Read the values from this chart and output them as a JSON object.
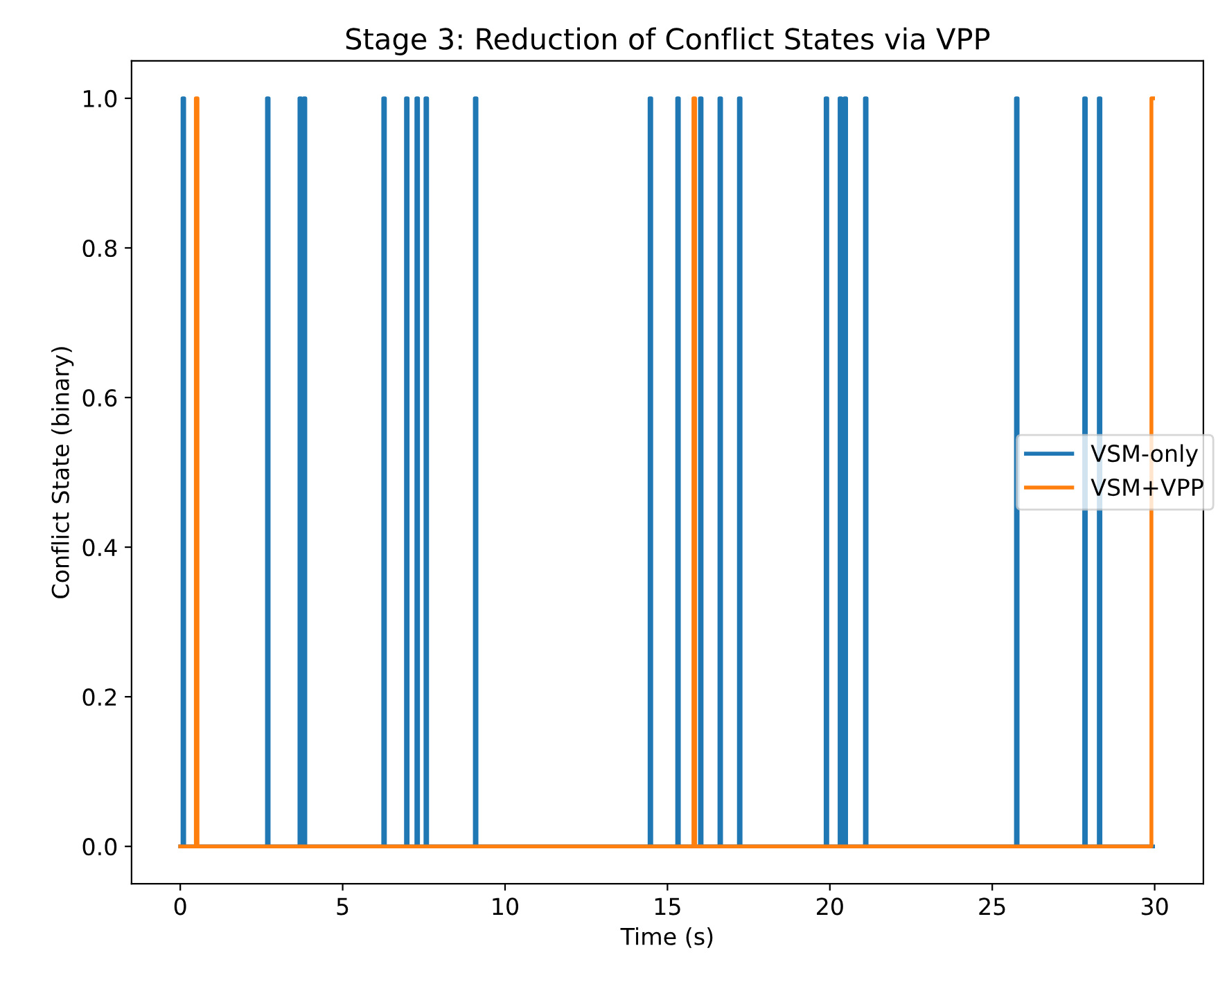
{
  "chart_data": {
    "type": "line",
    "title": "Stage 3: Reduction of Conflict States via VPP",
    "xlabel": "Time (s)",
    "ylabel": "Conflict State (binary)",
    "xlim": [
      -1.5,
      31.5
    ],
    "ylim": [
      -0.05,
      1.05
    ],
    "xticks": [
      0,
      5,
      10,
      15,
      20,
      25,
      30
    ],
    "yticks": [
      {
        "value": 0,
        "label": "0.0"
      },
      {
        "value": 0.2,
        "label": "0.2"
      },
      {
        "value": 0.4,
        "label": "0.4"
      },
      {
        "value": 0.6,
        "label": "0.6"
      },
      {
        "value": 0.8,
        "label": "0.8"
      },
      {
        "value": 1,
        "label": "1.0"
      }
    ],
    "grid": false,
    "legend": "right",
    "marker": "none",
    "line_style": "solid",
    "series": [
      {
        "name": "VSM-only",
        "color": "#1f77b4",
        "x": [
          0,
          0.07,
          0.07,
          0.12,
          0.12,
          2.67,
          2.67,
          2.72,
          2.72,
          3.67,
          3.67,
          3.72,
          3.72,
          3.8,
          3.8,
          3.85,
          3.85,
          6.25,
          6.25,
          6.3,
          6.3,
          6.95,
          6.95,
          7.0,
          7.0,
          7.27,
          7.27,
          7.32,
          7.32,
          7.55,
          7.55,
          7.6,
          7.6,
          9.07,
          9.07,
          9.12,
          9.12,
          14.45,
          14.45,
          14.5,
          14.5,
          15.3,
          15.3,
          15.35,
          15.35,
          16.0,
          16.0,
          16.05,
          16.05,
          16.6,
          16.6,
          16.65,
          16.65,
          17.2,
          17.2,
          17.25,
          17.25,
          19.87,
          19.87,
          19.92,
          19.92,
          20.3,
          20.3,
          20.35,
          20.35,
          20.45,
          20.45,
          20.5,
          20.5,
          21.08,
          21.08,
          21.13,
          21.13,
          25.73,
          25.73,
          25.78,
          25.78,
          27.83,
          27.83,
          27.88,
          27.88,
          28.28,
          28.28,
          28.33,
          28.33,
          29.95
        ],
        "values": [
          0,
          0,
          1,
          1,
          0,
          0,
          1,
          1,
          0,
          0,
          1,
          1,
          0,
          0,
          1,
          1,
          0,
          0,
          1,
          1,
          0,
          0,
          1,
          1,
          0,
          0,
          1,
          1,
          0,
          0,
          1,
          1,
          0,
          0,
          1,
          1,
          0,
          0,
          1,
          1,
          0,
          0,
          1,
          1,
          0,
          0,
          1,
          1,
          0,
          0,
          1,
          1,
          0,
          0,
          1,
          1,
          0,
          0,
          1,
          1,
          0,
          0,
          1,
          1,
          0,
          0,
          1,
          1,
          0,
          0,
          1,
          1,
          0,
          0,
          1,
          1,
          0,
          0,
          1,
          1,
          0,
          0,
          1,
          1,
          0,
          0
        ]
      },
      {
        "name": "VSM+VPP",
        "color": "#ff7f0e",
        "x": [
          0,
          0.48,
          0.48,
          0.53,
          0.53,
          15.8,
          15.8,
          15.85,
          15.85,
          29.9,
          29.9,
          29.95
        ],
        "values": [
          0,
          0,
          1,
          1,
          0,
          0,
          1,
          1,
          0,
          0,
          1,
          1
        ]
      }
    ]
  }
}
